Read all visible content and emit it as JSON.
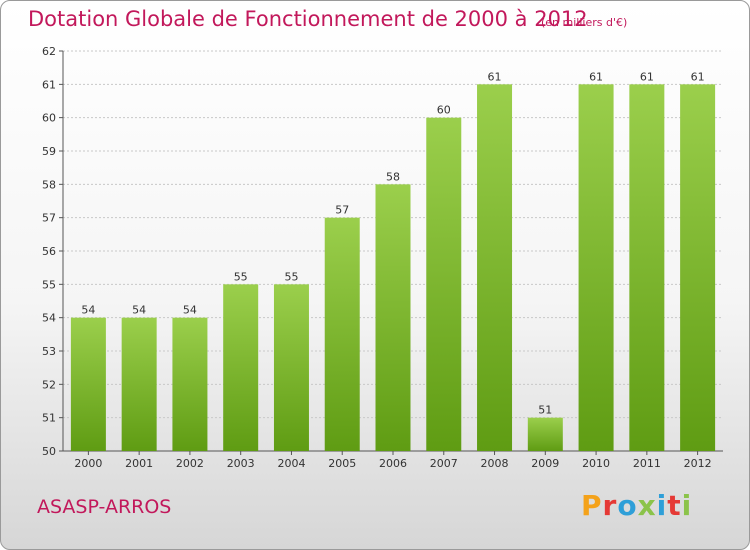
{
  "chart_data": {
    "type": "bar",
    "title": "Dotation Globale de Fonctionnement de 2000 à 2012",
    "subtitle": "(en milliers d'€)",
    "categories": [
      "2000",
      "2001",
      "2002",
      "2003",
      "2004",
      "2005",
      "2006",
      "2007",
      "2008",
      "2009",
      "2010",
      "2011",
      "2012"
    ],
    "values": [
      54,
      54,
      54,
      55,
      55,
      57,
      58,
      60,
      61,
      51,
      61,
      61,
      61
    ],
    "ylim": [
      50,
      62
    ],
    "yticks": [
      50,
      51,
      52,
      53,
      54,
      55,
      56,
      57,
      58,
      59,
      60,
      61,
      62
    ],
    "xlabel": "",
    "ylabel": "",
    "grid": true,
    "bar_color_top": "#9bcf4c",
    "bar_color_bottom": "#5f9c13"
  },
  "footer": {
    "commune": "ASASP-ARROS",
    "brand": "Proxiti",
    "brand_colors": [
      "#f4a21a",
      "#e53935",
      "#2e9fd8",
      "#8bc34a",
      "#2e9fd8",
      "#e53935",
      "#8bc34a"
    ]
  },
  "colors": {
    "title": "#c2185b",
    "grid": "#c8c8c8",
    "axis": "#555555"
  }
}
